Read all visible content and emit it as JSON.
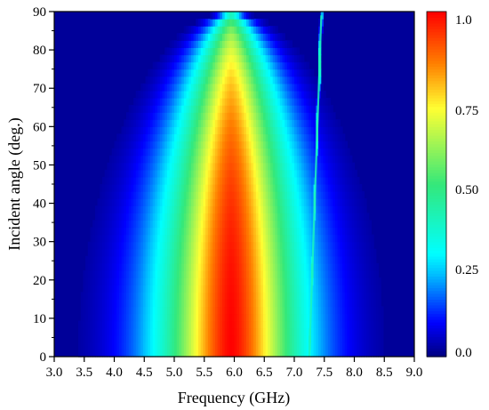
{
  "chart_data": {
    "type": "heatmap",
    "title": "",
    "xlabel": "Frequency (GHz)",
    "ylabel": "Incident angle (deg.)",
    "xlim": [
      3.0,
      9.0
    ],
    "ylim": [
      0,
      90
    ],
    "x_ticks": [
      "3.0",
      "3.5",
      "4.0",
      "4.5",
      "5.0",
      "5.5",
      "6.0",
      "6.5",
      "7.0",
      "7.5",
      "8.0",
      "8.5",
      "9.0"
    ],
    "y_ticks": [
      "0",
      "10",
      "20",
      "30",
      "40",
      "50",
      "60",
      "70",
      "80",
      "90"
    ],
    "colorbar": {
      "range": [
        0,
        1
      ],
      "tick_labels": [
        "0.0",
        "0.25",
        "0.50",
        "0.75",
        "1.0"
      ],
      "tick_values": [
        0,
        0.25,
        0.5,
        0.75,
        1.0
      ],
      "colormap": "jet",
      "colors": [
        "#00007f",
        "#0000ff",
        "#00bfff",
        "#00ffff",
        "#34e87a",
        "#ffff33",
        "#ff8000",
        "#ff0000"
      ]
    },
    "features": {
      "main_peak": {
        "center_freq_ghz": 5.95,
        "angle_extent_deg": [
          0,
          48
        ],
        "value": 1.0
      },
      "outer_band_top_deg": 85,
      "narrow_resonance": {
        "freq_start_ghz": 7.25,
        "freq_end_ghz": 7.45,
        "angle_range_deg": [
          0,
          90
        ],
        "value": 0.4
      }
    }
  }
}
